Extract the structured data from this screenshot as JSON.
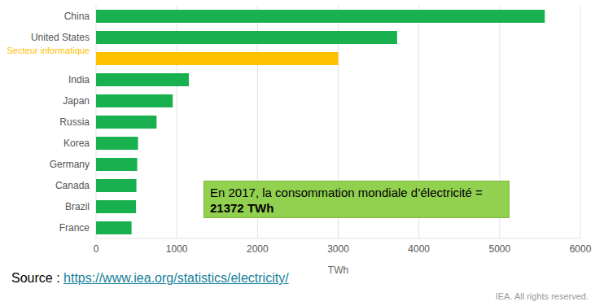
{
  "chart_data": {
    "type": "bar",
    "orientation": "horizontal",
    "categories": [
      "China",
      "United States",
      "Secteur informatique",
      "India",
      "Japan",
      "Russia",
      "Korea",
      "Germany",
      "Canada",
      "Brazil",
      "France"
    ],
    "values": [
      5560,
      3730,
      3000,
      1150,
      950,
      750,
      520,
      510,
      500,
      495,
      440
    ],
    "color": "#19b14f",
    "colors": [
      "#19b14f",
      "#19b14f",
      "#ffc000",
      "#19b14f",
      "#19b14f",
      "#19b14f",
      "#19b14f",
      "#19b14f",
      "#19b14f",
      "#19b14f",
      "#19b14f"
    ],
    "xlabel": "TWh",
    "xlim": [
      0,
      6000
    ],
    "xticks": [
      0,
      1000,
      2000,
      3000,
      4000,
      5000,
      6000
    ],
    "grid": true,
    "annotations": [
      {
        "text": "En 2017, la consommation mondiale d’électricité =",
        "bold": "21372 TWh"
      }
    ],
    "source": {
      "label": "Source :",
      "url": "https://www.iea.org/statistics/electricity/"
    },
    "credit": "IEA. All rights reserved."
  }
}
